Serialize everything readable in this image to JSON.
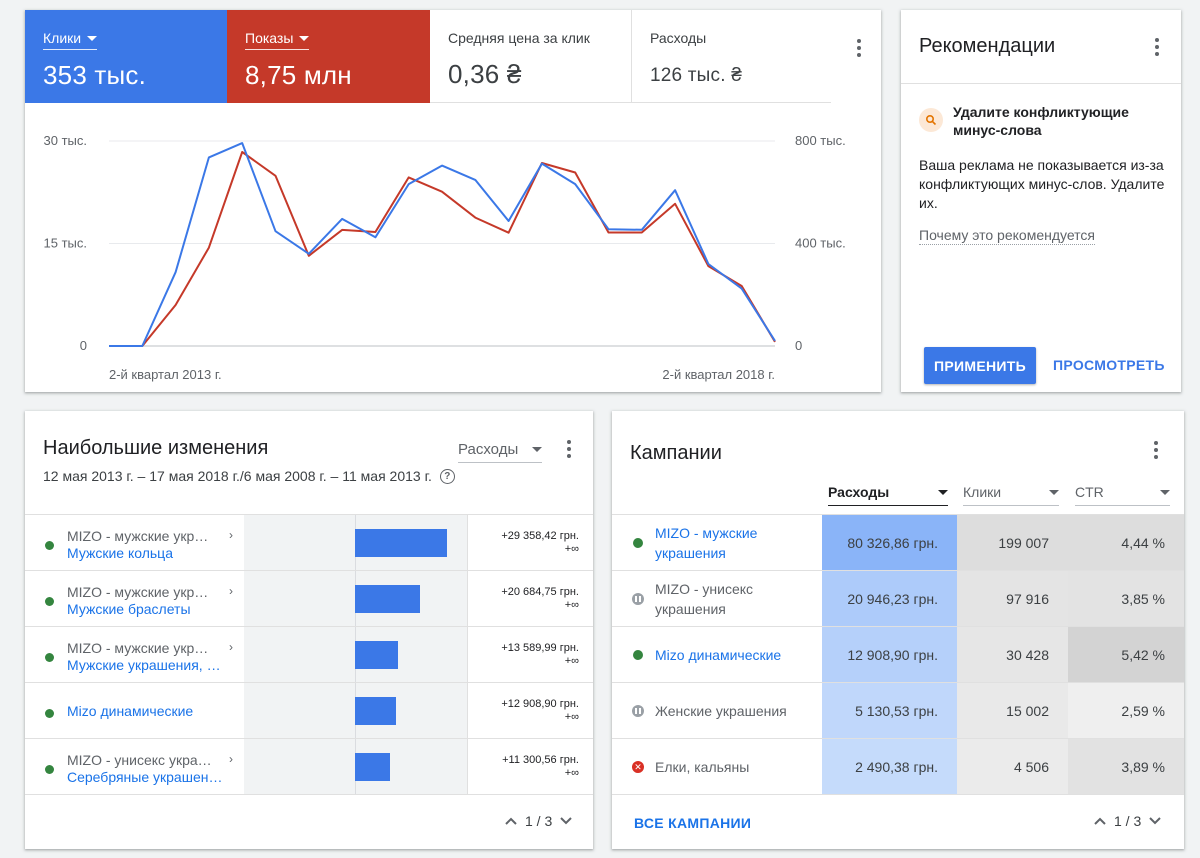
{
  "overview": {
    "metrics": [
      {
        "label": "Клики",
        "value": "353 тыс.",
        "selected": true,
        "color": "#3b78e7"
      },
      {
        "label": "Показы",
        "value": "8,75 млн",
        "selected": true,
        "color": "#c53929"
      },
      {
        "label": "Средняя цена за клик",
        "value": "0,36 ₴",
        "selected": false
      },
      {
        "label": "Расходы",
        "value": "126 тыс. ₴",
        "selected": false
      }
    ]
  },
  "chart_data": {
    "type": "line",
    "x": [
      1,
      2,
      3,
      4,
      5,
      6,
      7,
      8,
      9,
      10,
      11,
      12,
      13,
      14,
      15,
      16,
      17,
      18,
      19,
      20,
      21
    ],
    "left_axis": {
      "ticks": [
        "30 тыс.",
        "15 тыс.",
        "0"
      ],
      "ylim": [
        0,
        30000
      ]
    },
    "right_axis": {
      "ticks": [
        "800 тыс.",
        "400 тыс.",
        "0"
      ],
      "ylim": [
        0,
        800000
      ]
    },
    "x_tick_labels": [
      "2-й квартал 2013 г.",
      "2-й квартал 2018 г."
    ],
    "series": [
      {
        "name": "Клики",
        "axis": "left",
        "color": "#3b78e7",
        "values": [
          0,
          0,
          10800,
          27600,
          29700,
          16800,
          13500,
          18600,
          15900,
          23700,
          26400,
          24300,
          18300,
          26700,
          23700,
          17100,
          17000,
          22800,
          12000,
          8400,
          750
        ]
      },
      {
        "name": "Показы",
        "axis": "right",
        "color": "#c53929",
        "values": [
          0,
          0,
          160000,
          384000,
          757000,
          664000,
          352000,
          453000,
          445000,
          658000,
          602000,
          501000,
          442000,
          714000,
          677000,
          443000,
          443000,
          555000,
          312000,
          234000,
          16000
        ]
      }
    ]
  },
  "recs": {
    "title": "Рекомендации",
    "heading": "Удалите конфликтующие минус-слова",
    "text": "Ваша реклама не показывается из-за конфликтующих минус-слов. Удалите их.",
    "why": "Почему это рекомендуется",
    "apply": "ПРИМЕНИТЬ",
    "view": "ПРОСМОТРЕТЬ"
  },
  "changes": {
    "title": "Наибольшие изменения",
    "dropdown": "Расходы",
    "dates": "12 мая 2013 г. – 17 мая 2018 г./6 мая 2008 г. – 11 мая 2013 г.",
    "help": "?",
    "rows": [
      {
        "line1": "MIZO - мужские укра…",
        "line2": "Мужские кольца",
        "v1": "+29 358,42 грн.",
        "v2": "+∞",
        "amount": 29358.42
      },
      {
        "line1": "MIZO - мужские укра…",
        "line2": "Мужские браслеты",
        "v1": "+20 684,75 грн.",
        "v2": "+∞",
        "amount": 20684.75
      },
      {
        "line1": "MIZO - мужские укра…",
        "line2": "Мужские украшения, …",
        "v1": "+13 589,99 грн.",
        "v2": "+∞",
        "amount": 13589.99
      },
      {
        "line1": "",
        "line2": "Mizo динамические",
        "v1": "+12 908,90 грн.",
        "v2": "+∞",
        "amount": 12908.9
      },
      {
        "line1": "MIZO - унисекс укра…",
        "line2": "Серебряные украшен…",
        "v1": "+11 300,56 грн.",
        "v2": "+∞",
        "amount": 11300.56
      }
    ],
    "pager": "1 / 3"
  },
  "camps": {
    "title": "Кампании",
    "columns": [
      "Расходы",
      "Клики",
      "CTR"
    ],
    "rows": [
      {
        "name": "MIZO - мужские украшения",
        "status": "active",
        "link": true,
        "cost": "80 326,86 грн.",
        "clicks": "199 007",
        "ctr": "4,44 %",
        "cost_value": 80326.86
      },
      {
        "name": "MIZO - унисекс украшения",
        "status": "paused",
        "link": false,
        "cost": "20 946,23 грн.",
        "clicks": "97 916",
        "ctr": "3,85 %",
        "cost_value": 20946.23
      },
      {
        "name": "Mizo динамические",
        "status": "active",
        "link": true,
        "cost": "12 908,90 грн.",
        "clicks": "30 428",
        "ctr": "5,42 %",
        "cost_value": 12908.9
      },
      {
        "name": "Женские украшения",
        "status": "paused",
        "link": false,
        "cost": "5 130,53 грн.",
        "clicks": "15 002",
        "ctr": "2,59 %",
        "cost_value": 5130.53
      },
      {
        "name": "Елки, кальяны",
        "status": "removed",
        "link": false,
        "cost": "2 490,38 грн.",
        "clicks": "4 506",
        "ctr": "3,89 %",
        "cost_value": 2490.38
      }
    ],
    "all_link": "ВСЕ КАМПАНИИ",
    "pager": "1 / 3"
  }
}
